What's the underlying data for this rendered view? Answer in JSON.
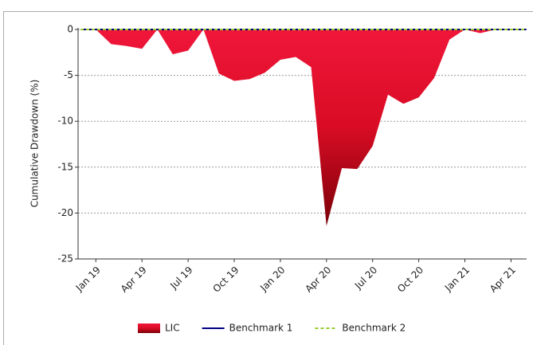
{
  "chart_data": {
    "type": "area",
    "y_label": "Cumulative Drawdown (%)",
    "categories": [
      null,
      "Jan 19",
      null,
      null,
      "Apr 19",
      null,
      null,
      "Jul 19",
      null,
      null,
      "Oct 19",
      null,
      null,
      "Jan 20",
      null,
      null,
      "Apr 20",
      null,
      null,
      "Jul 20",
      null,
      null,
      "Oct 20",
      null,
      null,
      "Jan 21",
      null,
      null,
      "Apr 21",
      null
    ],
    "series": [
      {
        "name": "LIC",
        "color": "#e8102e",
        "values": [
          0,
          0,
          -1.6,
          -1.8,
          -2.1,
          0,
          -2.7,
          -2.3,
          0,
          -4.8,
          -5.6,
          -5.4,
          -4.7,
          -3.3,
          -3.0,
          -4.1,
          -21.4,
          -15.1,
          -15.2,
          -12.7,
          -7.1,
          -8.1,
          -7.4,
          -5.3,
          -1.1,
          0,
          -0.4,
          0,
          0,
          0
        ]
      },
      {
        "name": "Benchmark 1",
        "color": "#000080",
        "values": [
          0,
          0,
          0,
          0,
          0,
          0,
          0,
          0,
          0,
          0,
          0,
          0,
          0,
          0,
          0,
          0,
          0,
          0,
          0,
          0,
          0,
          0,
          0,
          0,
          0,
          0,
          0,
          0,
          0,
          0
        ]
      },
      {
        "name": "Benchmark 2",
        "color": "#9acd32",
        "values": [
          0,
          0,
          0,
          0,
          0,
          0,
          0,
          0,
          0,
          0,
          0,
          0,
          0,
          0,
          0,
          0,
          0,
          0,
          0,
          0,
          0,
          0,
          0,
          0,
          0,
          0,
          0,
          0,
          0,
          0
        ]
      }
    ],
    "ylim": [
      -25,
      0
    ],
    "yticks": [
      0,
      -5,
      -10,
      -15,
      -20,
      -25
    ],
    "grid": true
  }
}
